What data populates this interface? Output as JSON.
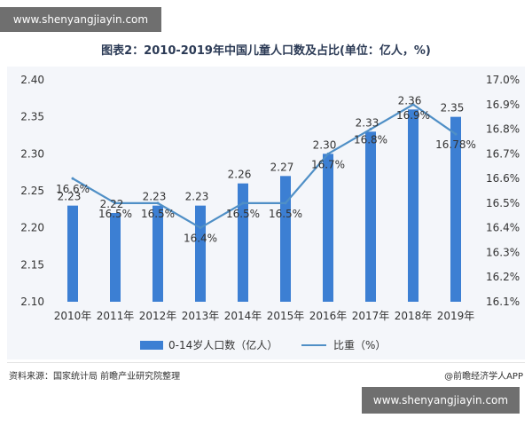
{
  "watermark_top": "www.shenyangjiayin.com",
  "watermark_bottom": "www.shenyangjiayin.com",
  "title": "图表2：2010-2019年中国儿童人口数及占比(单位：亿人，%)",
  "footer": {
    "source": "资料来源：国家统计局 前瞻产业研究院整理",
    "brand": "@前瞻经济学人APP"
  },
  "colors": {
    "bar": "#3c7fd3",
    "line": "#4f8fc6",
    "bg": "#f4f6fa",
    "axis_text": "#333333"
  },
  "chart_data": {
    "type": "bar",
    "categories": [
      "2010年",
      "2011年",
      "2012年",
      "2013年",
      "2014年",
      "2015年",
      "2016年",
      "2017年",
      "2018年",
      "2019年"
    ],
    "series": [
      {
        "name": "0-14岁人口数（亿人）",
        "type": "bar",
        "axis": "left",
        "values": [
          2.23,
          2.22,
          2.23,
          2.23,
          2.26,
          2.27,
          2.3,
          2.33,
          2.36,
          2.35
        ],
        "labels": [
          "2.23",
          "2.22",
          "2.23",
          "2.23",
          "2.26",
          "2.27",
          "2.30",
          "2.33",
          "2.36",
          "2.35"
        ]
      },
      {
        "name": "比重（%）",
        "type": "line",
        "axis": "right",
        "values": [
          16.6,
          16.5,
          16.5,
          16.4,
          16.5,
          16.5,
          16.7,
          16.8,
          16.9,
          16.78
        ],
        "labels": [
          "16.6%",
          "16.5%",
          "16.5%",
          "16.4%",
          "16.5%",
          "16.5%",
          "16.7%",
          "16.8%",
          "16.9%",
          "16.78%"
        ]
      }
    ],
    "y_left": {
      "min": 2.1,
      "max": 2.4,
      "ticks": [
        "2.10",
        "2.15",
        "2.20",
        "2.25",
        "2.30",
        "2.35",
        "2.40"
      ]
    },
    "y_right": {
      "min": 16.1,
      "max": 17.0,
      "ticks": [
        "16.1%",
        "16.2%",
        "16.3%",
        "16.4%",
        "16.5%",
        "16.6%",
        "16.7%",
        "16.8%",
        "16.9%",
        "17.0%"
      ]
    },
    "legend_position": "bottom",
    "grid": false
  }
}
